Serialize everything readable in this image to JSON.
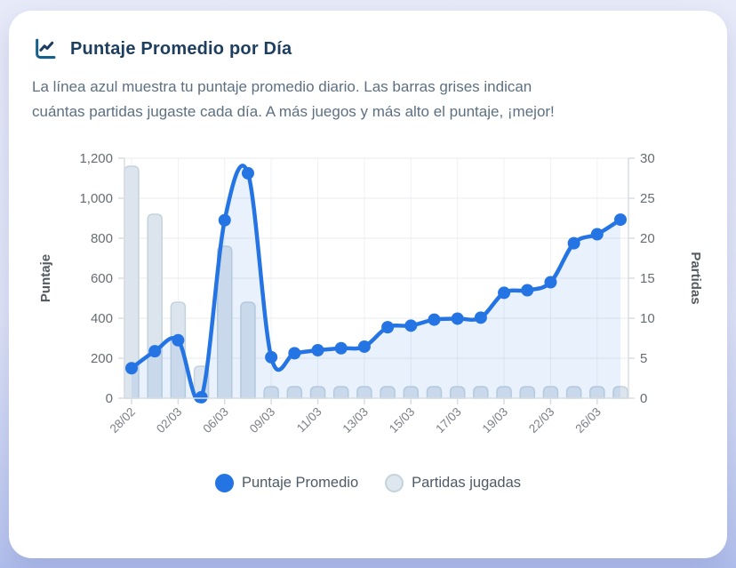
{
  "card": {
    "title": "Puntaje Promedio por Día",
    "description_lines": [
      "La línea azul muestra tu puntaje promedio diario. Las barras grises indican",
      "cuántas partidas jugaste cada día. A más juegos y más alto el puntaje, ¡mejor!"
    ]
  },
  "colors": {
    "line_blue": "#2574e4",
    "area_fill": "rgba(37,116,228,0.10)",
    "bar_fill": "#dce5ed",
    "bar_border": "#c3d3de",
    "title_navy": "#1d3e5e",
    "grid": "#e9ebee",
    "axis_line": "#d9dde2"
  },
  "chart_data": {
    "type": "line+bar combo",
    "num_points": 22,
    "label_every": 2,
    "x_tick_labels": [
      "28/02",
      "02/03",
      "06/03",
      "09/03",
      "11/03",
      "13/03",
      "15/03",
      "17/03",
      "19/03",
      "22/03",
      "26/03"
    ],
    "series": [
      {
        "name": "Puntaje Promedio",
        "type": "line",
        "axis": "left",
        "color": "#2574e4",
        "values": [
          150,
          235,
          290,
          5,
          890,
          1125,
          205,
          225,
          240,
          250,
          258,
          355,
          363,
          393,
          398,
          403,
          527,
          540,
          580,
          775,
          820,
          893
        ]
      },
      {
        "name": "Partidas jugadas",
        "type": "bar",
        "axis": "right",
        "color": "#dce5ed",
        "values": [
          29,
          23,
          12,
          4,
          19,
          12,
          1,
          1,
          1,
          1,
          1,
          1,
          1,
          1,
          1,
          1,
          1,
          1,
          1,
          1,
          1,
          1
        ]
      }
    ],
    "left_axis": {
      "title": "Puntaje",
      "min": 0,
      "max": 1200,
      "ticks": [
        "1,200",
        "1,000",
        "800",
        "600",
        "400",
        "200",
        "0"
      ]
    },
    "right_axis": {
      "title": "Partidas",
      "min": 0,
      "max": 30,
      "ticks": [
        "30",
        "25",
        "20",
        "15",
        "10",
        "5",
        "0"
      ]
    },
    "grid": true,
    "legend_position": "bottom",
    "legend": [
      {
        "label": "Puntaje Promedio",
        "swatch_fill": "#2574e4",
        "swatch_border": "#2574e4"
      },
      {
        "label": "Partidas jugadas",
        "swatch_fill": "#dfe7ee",
        "swatch_border": "#c3d3de"
      }
    ]
  }
}
